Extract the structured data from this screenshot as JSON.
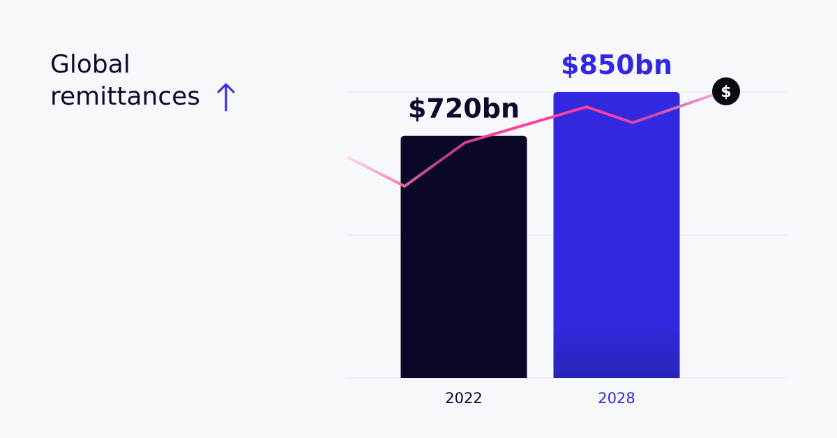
{
  "title": {
    "line1": "Global",
    "line2": "remittances"
  },
  "icons": {
    "title_arrow": "arrow-up-icon",
    "end_marker": "dollar-icon",
    "end_marker_glyph": "$"
  },
  "colors": {
    "background": "#f7f8fc",
    "text_dark": "#0b0a2a",
    "accent": "#3128e0",
    "bar_2022": "#0b0726",
    "bar_2028": "#3128e0",
    "trend_line": "#ff3f9c",
    "grid": "#e4e5ee"
  },
  "chart_data": {
    "type": "bar",
    "categories": [
      "2022",
      "2028"
    ],
    "values": [
      720,
      850
    ],
    "value_labels": [
      "$720bn",
      "$850bn"
    ],
    "ylim": [
      0,
      850
    ],
    "grid": true,
    "trend_line": {
      "description_type": "line",
      "values": [
        655,
        570,
        700,
        806,
        759,
        850
      ]
    }
  }
}
